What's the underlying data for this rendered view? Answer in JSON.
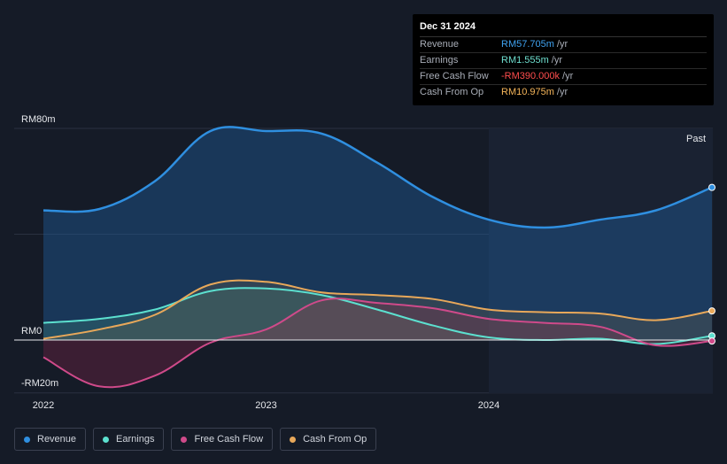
{
  "tooltip": {
    "date": "Dec 31 2024",
    "rows": [
      {
        "label": "Revenue",
        "value": "RM57.705m",
        "unit": "/yr",
        "color": "#3fa2f0"
      },
      {
        "label": "Earnings",
        "value": "RM1.555m",
        "unit": "/yr",
        "color": "#6fe0d0"
      },
      {
        "label": "Free Cash Flow",
        "value": "-RM390.000k",
        "unit": "/yr",
        "color": "#ff4d4d"
      },
      {
        "label": "Cash From Op",
        "value": "RM10.975m",
        "unit": "/yr",
        "color": "#f5b55a"
      }
    ]
  },
  "legend": [
    {
      "label": "Revenue",
      "color": "#2f8fe0"
    },
    {
      "label": "Earnings",
      "color": "#5ce0cf"
    },
    {
      "label": "Free Cash Flow",
      "color": "#cf4a8a"
    },
    {
      "label": "Cash From Op",
      "color": "#e8a85a"
    }
  ],
  "past_label": "Past",
  "chart_data": {
    "type": "line",
    "ylim": [
      -20,
      80
    ],
    "y_ticks": [
      {
        "value": 80,
        "label": "RM80m"
      },
      {
        "value": 0,
        "label": "RM0"
      },
      {
        "value": -20,
        "label": "-RM20m"
      }
    ],
    "x_ticks": [
      {
        "value": 2022.0,
        "label": "2022"
      },
      {
        "value": 2023.0,
        "label": "2023"
      },
      {
        "value": 2024.0,
        "label": "2024"
      }
    ],
    "xlim": [
      2021.87,
      2025.0
    ],
    "grid": true,
    "series": [
      {
        "name": "Revenue",
        "color": "#2f8fe0",
        "x": [
          2022.0,
          2022.25,
          2022.5,
          2022.75,
          2023.0,
          2023.25,
          2023.5,
          2023.75,
          2024.0,
          2024.25,
          2024.5,
          2024.75,
          2025.0
        ],
        "y": [
          49.0,
          49.5,
          60.0,
          79.0,
          79.0,
          78.0,
          67.0,
          54.0,
          45.5,
          42.5,
          45.5,
          49.0,
          57.7
        ]
      },
      {
        "name": "Earnings",
        "color": "#5ce0cf",
        "x": [
          2022.0,
          2022.25,
          2022.5,
          2022.75,
          2023.0,
          2023.25,
          2023.5,
          2023.75,
          2024.0,
          2024.25,
          2024.5,
          2024.75,
          2025.0
        ],
        "y": [
          6.5,
          8.0,
          11.5,
          18.5,
          19.5,
          17.0,
          11.5,
          5.5,
          1.0,
          0.0,
          0.5,
          -1.5,
          1.6
        ]
      },
      {
        "name": "Free Cash Flow",
        "color": "#cf4a8a",
        "x": [
          2022.0,
          2022.25,
          2022.5,
          2022.75,
          2023.0,
          2023.25,
          2023.5,
          2023.75,
          2024.0,
          2024.25,
          2024.5,
          2024.75,
          2025.0
        ],
        "y": [
          -6.5,
          -17.5,
          -13.5,
          -1.0,
          4.0,
          15.0,
          14.0,
          12.0,
          8.0,
          6.5,
          5.0,
          -2.0,
          -0.39
        ]
      },
      {
        "name": "Cash From Op",
        "color": "#e8a85a",
        "x": [
          2022.0,
          2022.25,
          2022.5,
          2022.75,
          2023.0,
          2023.25,
          2023.5,
          2023.75,
          2024.0,
          2024.25,
          2024.5,
          2024.75,
          2025.0
        ],
        "y": [
          0.5,
          4.0,
          9.5,
          21.0,
          22.0,
          18.0,
          17.0,
          15.5,
          11.5,
          10.5,
          10.0,
          7.5,
          11.0
        ]
      }
    ]
  }
}
